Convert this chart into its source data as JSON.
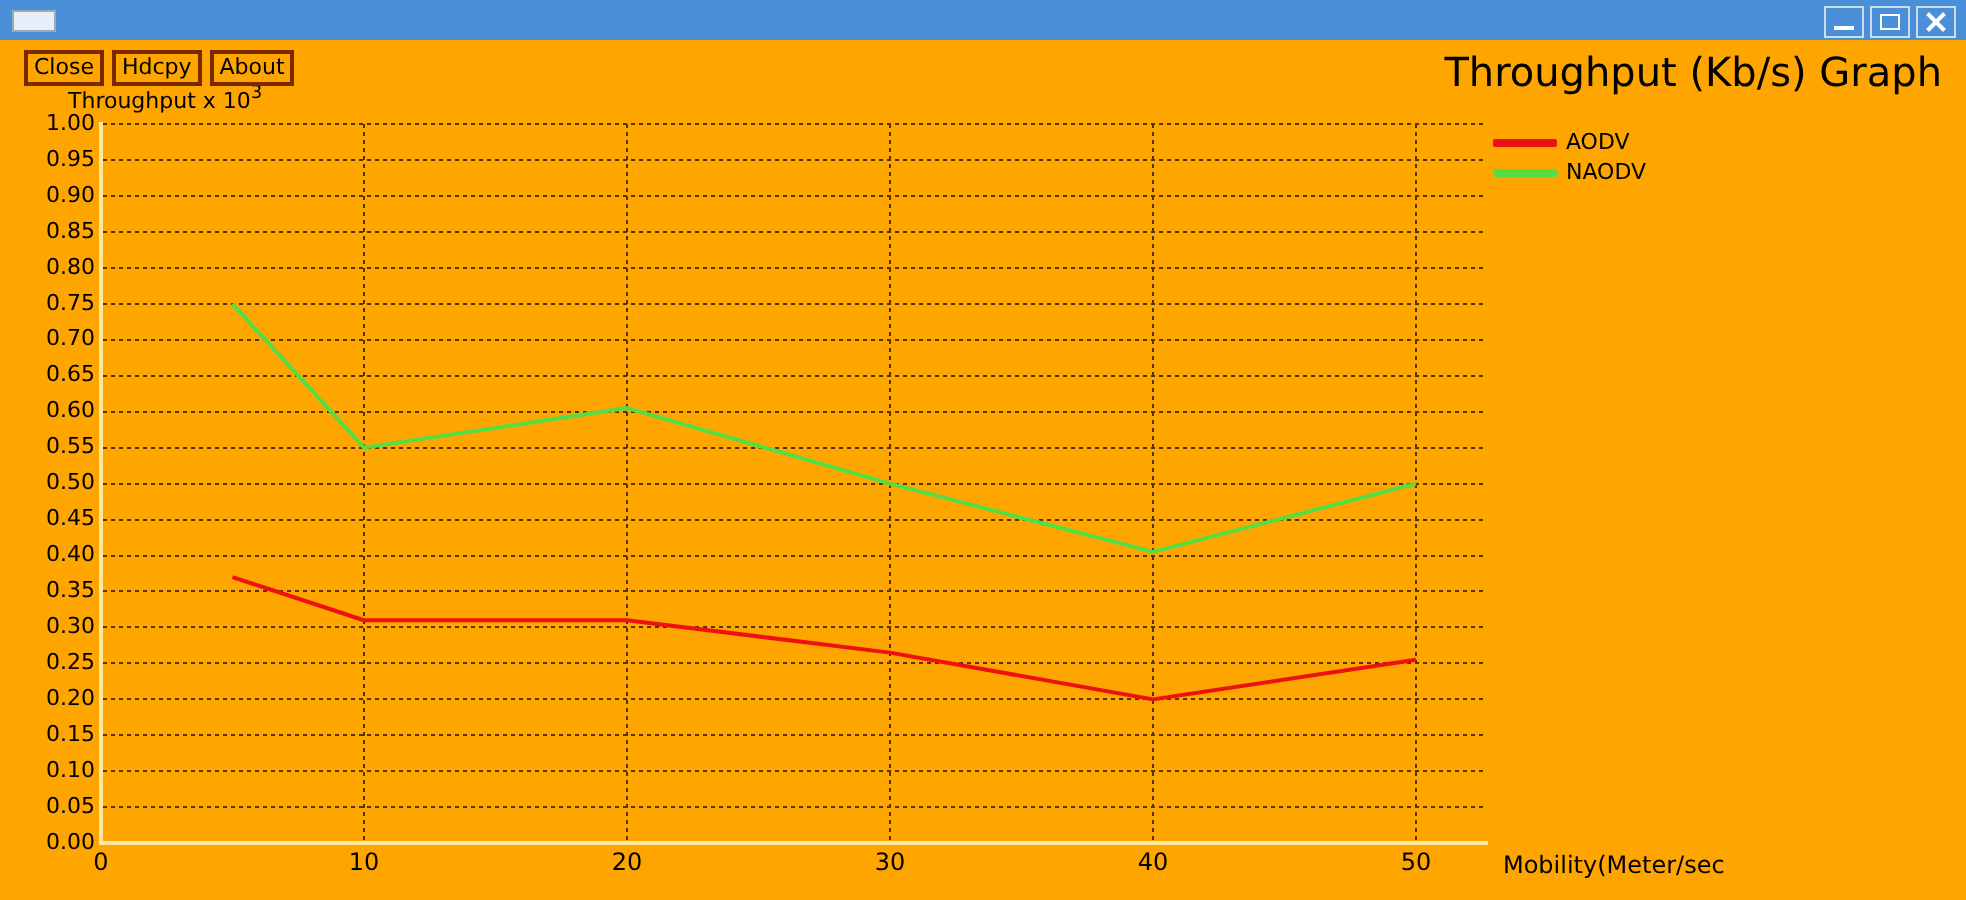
{
  "chart_data": {
    "type": "line",
    "title": "Throughput (Kb/s) Graph",
    "xlabel": "Mobility(Meter/sec",
    "ylabel": "Throughput x 10$^{3}$",
    "annotations": [
      "Close",
      "Hdcpy",
      "About"
    ],
    "x": [
      5,
      10,
      20,
      30,
      40,
      50
    ],
    "series": [
      {
        "name": "AODV",
        "color": "#ee1111",
        "values": [
          0.37,
          0.31,
          0.31,
          0.265,
          0.2,
          0.255
        ]
      },
      {
        "name": "NAODV",
        "color": "#55dd44",
        "values": [
          0.75,
          0.55,
          0.605,
          0.5,
          0.405,
          0.5
        ]
      }
    ],
    "xlim": [
      0,
      52.7
    ],
    "xticks": [
      0,
      10,
      20,
      30,
      40,
      50
    ],
    "ylim": [
      0,
      1
    ],
    "yticks": [
      {
        "value": 0,
        "label": "0.00"
      },
      {
        "value": 0.05,
        "label": "0.05"
      },
      {
        "value": 0.1,
        "label": "0.10"
      },
      {
        "value": 0.15,
        "label": "0.15"
      },
      {
        "value": 0.2,
        "label": "0.20"
      },
      {
        "value": 0.25,
        "label": "0.25"
      },
      {
        "value": 0.3,
        "label": "0.30"
      },
      {
        "value": 0.35,
        "label": "0.35"
      },
      {
        "value": 0.4,
        "label": "0.40"
      },
      {
        "value": 0.45,
        "label": "0.45"
      },
      {
        "value": 0.5,
        "label": "0.50"
      },
      {
        "value": 0.55,
        "label": "0.55"
      },
      {
        "value": 0.6,
        "label": "0.60"
      },
      {
        "value": 0.65,
        "label": "0.65"
      },
      {
        "value": 0.7,
        "label": "0.70"
      },
      {
        "value": 0.75,
        "label": "0.75"
      },
      {
        "value": 0.8,
        "label": "0.80"
      },
      {
        "value": 0.85,
        "label": "0.85"
      },
      {
        "value": 0.9,
        "label": "0.90"
      },
      {
        "value": 0.95,
        "label": "0.95"
      },
      {
        "value": 1,
        "label": "1.00"
      }
    ],
    "grid": true,
    "legend": "top right",
    "marker": "none",
    "line_style": "solid"
  }
}
